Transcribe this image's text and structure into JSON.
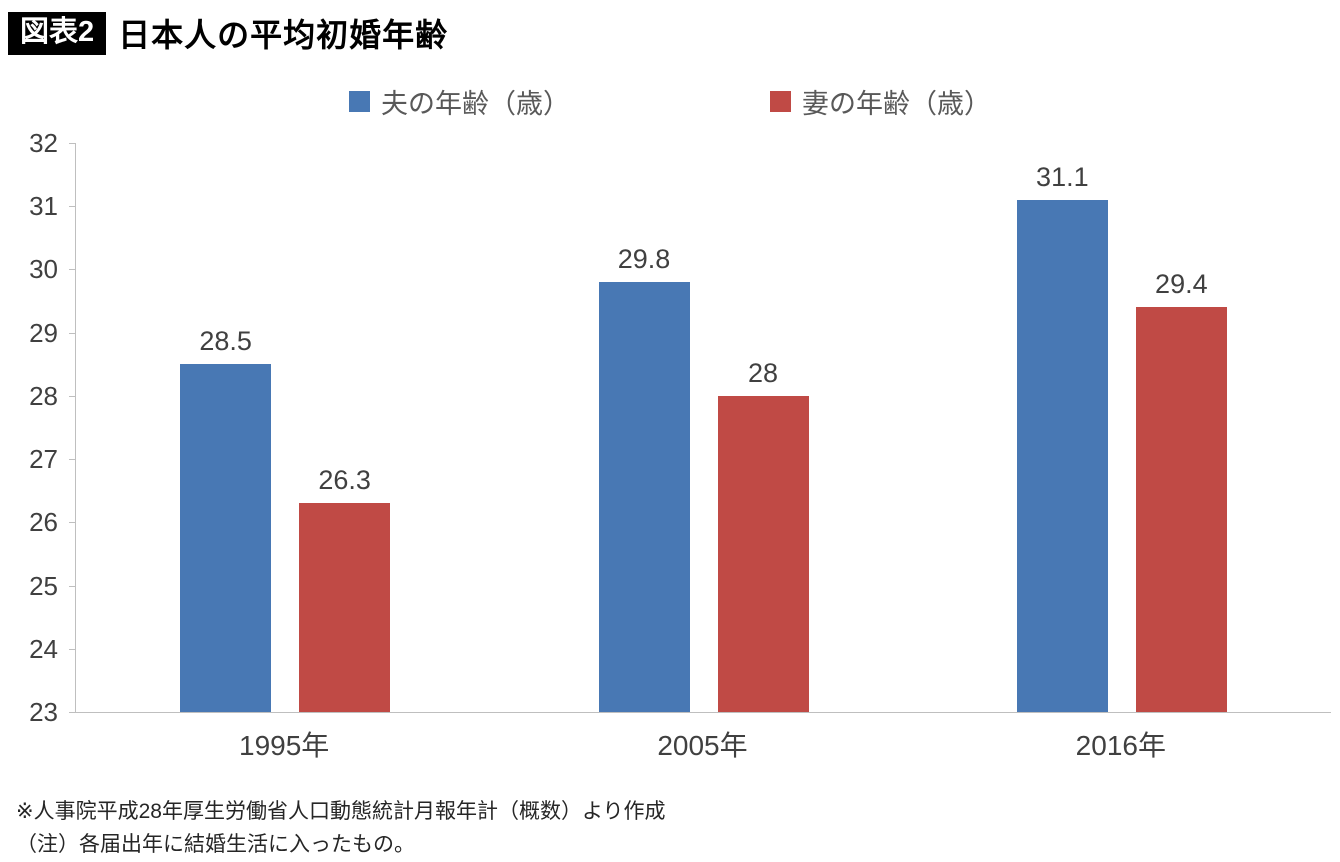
{
  "header": {
    "badge": "図表2",
    "title": "日本人の平均初婚年齢"
  },
  "chart_data": {
    "type": "bar",
    "title": "日本人の平均初婚年齢",
    "categories": [
      "1995年",
      "2005年",
      "2016年"
    ],
    "series": [
      {
        "key": "husband",
        "name": "夫の年齢（歳）",
        "color": "#4878b4",
        "values": [
          28.5,
          29.8,
          31.1
        ],
        "display_values": [
          "28.5",
          "29.8",
          "31.1"
        ]
      },
      {
        "key": "wife",
        "name": "妻の年齢（歳）",
        "color": "#c04a45",
        "values": [
          26.3,
          28,
          29.4
        ],
        "display_values": [
          "26.3",
          "28",
          "29.4"
        ]
      }
    ],
    "ylim": [
      23,
      32
    ],
    "yticks": [
      23,
      24,
      25,
      26,
      27,
      28,
      29,
      30,
      31,
      32
    ],
    "grid": false,
    "legend_position": "top"
  },
  "footnotes": [
    "※人事院平成28年厚生労働省人口動態統計月報年計（概数）より作成",
    "（注）各届出年に結婚生活に入ったもの。"
  ]
}
